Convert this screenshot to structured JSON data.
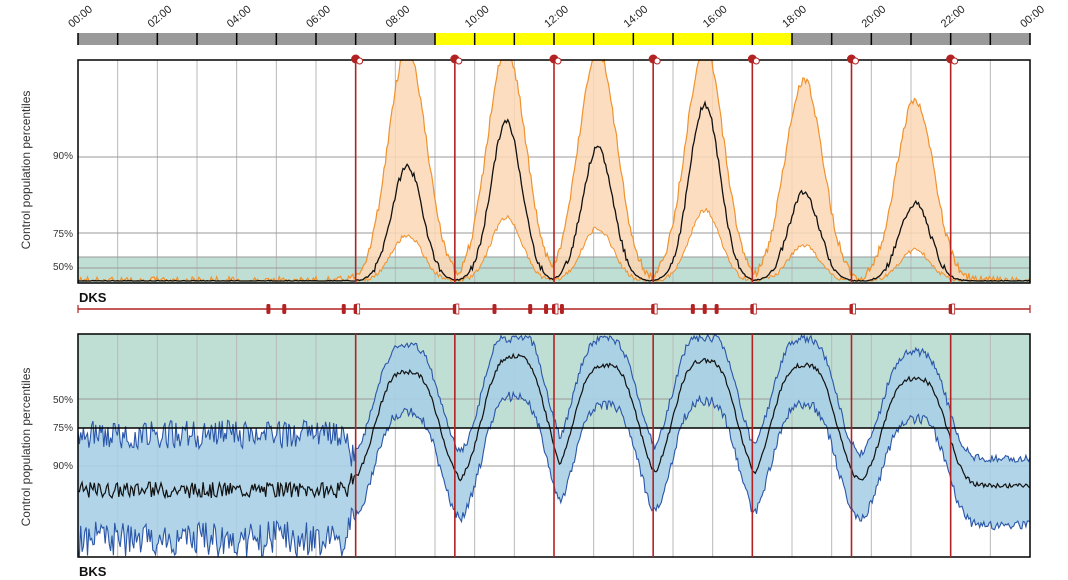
{
  "chart_data": [
    {
      "type": "area",
      "panel_label": "DKS",
      "ylabel": "Control population percentiles",
      "y_tick_labels": [
        "50%",
        "75%",
        "90%"
      ],
      "x_ticks": [
        "00:00",
        "02:00",
        "04:00",
        "06:00",
        "08:00",
        "10:00",
        "12:00",
        "14:00",
        "16:00",
        "18:00",
        "20:00",
        "22:00",
        "00:00"
      ],
      "xlim_hours": [
        0,
        24
      ],
      "light_period_hours": [
        9,
        18
      ],
      "colors": {
        "band": "#fcd7b4",
        "band_edge": "#f0922e",
        "median": "#111111",
        "control_band": "#b5d9cc",
        "event": "#b22222"
      },
      "event_hours": [
        7,
        9.5,
        12,
        14.5,
        17,
        19.5,
        22
      ],
      "median_peaks": [
        {
          "center_h": 8.3,
          "level": 0.52
        },
        {
          "center_h": 10.8,
          "level": 0.72
        },
        {
          "center_h": 13.1,
          "level": 0.6
        },
        {
          "center_h": 15.8,
          "level": 0.8
        },
        {
          "center_h": 18.3,
          "level": 0.4
        },
        {
          "center_h": 21.1,
          "level": 0.35
        }
      ],
      "grid": true
    },
    {
      "type": "area",
      "panel_label": "BKS",
      "ylabel": "Control population percentiles",
      "y_tick_labels": [
        "50%",
        "75%",
        "90%"
      ],
      "x_ticks": [
        "00:00",
        "02:00",
        "04:00",
        "06:00",
        "08:00",
        "10:00",
        "12:00",
        "14:00",
        "16:00",
        "18:00",
        "20:00",
        "22:00",
        "00:00"
      ],
      "xlim_hours": [
        0,
        24
      ],
      "colors": {
        "band": "#a9cfe5",
        "band_edge": "#2a56a8",
        "median": "#111111",
        "control_band": "#b5d9cc",
        "event": "#b22222"
      },
      "event_hours": [
        7,
        9.5,
        12,
        14.5,
        17,
        19.5,
        22
      ],
      "median_plateaus": [
        {
          "center_h": 8.3,
          "level": 0.65
        },
        {
          "center_h": 11.0,
          "level": 0.72
        },
        {
          "center_h": 13.3,
          "level": 0.68
        },
        {
          "center_h": 15.8,
          "level": 0.7
        },
        {
          "center_h": 18.3,
          "level": 0.68
        },
        {
          "center_h": 21.1,
          "level": 0.62
        }
      ],
      "grid": true
    }
  ]
}
